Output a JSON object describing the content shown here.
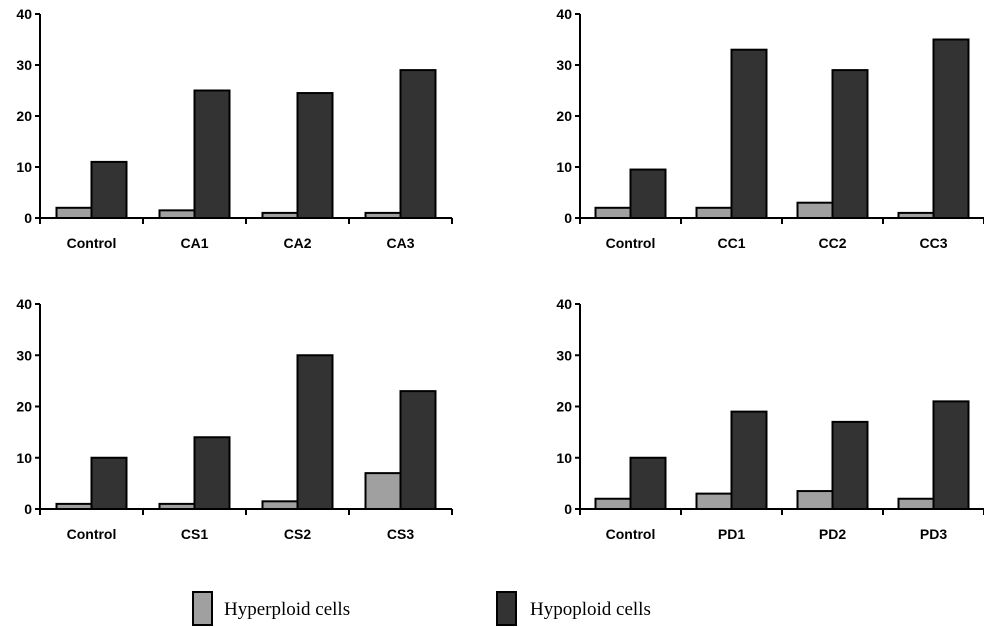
{
  "legend": [
    {
      "label": "Hyperploid cells",
      "color": "#a0a0a0"
    },
    {
      "label": "Hypoploid cells",
      "color": "#333333"
    }
  ],
  "chart_data": [
    {
      "type": "bar",
      "categories": [
        "Control",
        "CA1",
        "CA2",
        "CA3"
      ],
      "ylim": [
        0,
        40
      ],
      "yticks": [
        0,
        10,
        20,
        30,
        40
      ],
      "series": [
        {
          "name": "Hyperploid cells",
          "values": [
            2,
            1.5,
            1,
            1
          ]
        },
        {
          "name": "Hypoploid cells",
          "values": [
            11,
            25,
            24.5,
            29
          ]
        }
      ]
    },
    {
      "type": "bar",
      "categories": [
        "Control",
        "CC1",
        "CC2",
        "CC3"
      ],
      "ylim": [
        0,
        40
      ],
      "yticks": [
        0,
        10,
        20,
        30,
        40
      ],
      "series": [
        {
          "name": "Hyperploid cells",
          "values": [
            2,
            2,
            3,
            1
          ]
        },
        {
          "name": "Hypoploid cells",
          "values": [
            9.5,
            33,
            29,
            35
          ]
        }
      ]
    },
    {
      "type": "bar",
      "categories": [
        "Control",
        "CS1",
        "CS2",
        "CS3"
      ],
      "ylim": [
        0,
        40
      ],
      "yticks": [
        0,
        10,
        20,
        30,
        40
      ],
      "series": [
        {
          "name": "Hyperploid cells",
          "values": [
            1,
            1,
            1.5,
            7
          ]
        },
        {
          "name": "Hypoploid cells",
          "values": [
            10,
            14,
            30,
            23
          ]
        }
      ]
    },
    {
      "type": "bar",
      "categories": [
        "Control",
        "PD1",
        "PD2",
        "PD3"
      ],
      "ylim": [
        0,
        40
      ],
      "yticks": [
        0,
        10,
        20,
        30,
        40
      ],
      "series": [
        {
          "name": "Hyperploid cells",
          "values": [
            2,
            3,
            3.5,
            2
          ]
        },
        {
          "name": "Hypoploid cells",
          "values": [
            10,
            19,
            17,
            21
          ]
        }
      ]
    }
  ]
}
